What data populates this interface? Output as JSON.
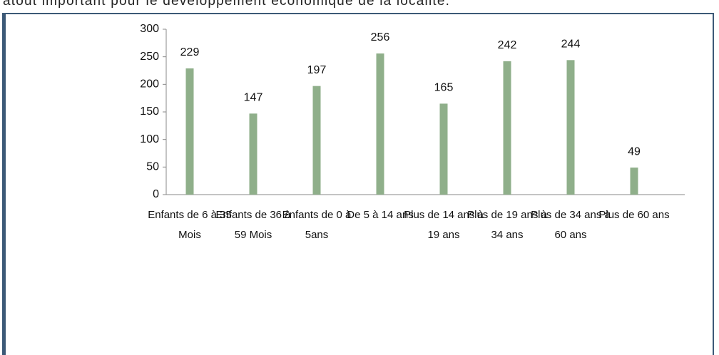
{
  "text_above": "atout important pour le développement économique de la localité.",
  "chart_data": {
    "type": "bar",
    "categories": [
      "Enfants de 6 à 35 Mois",
      "Enfants de 36 à 59 Mois",
      "Enfants de 0 à 5ans",
      "De 5 à 14 ans",
      "Plus de 14 ans à 19 ans",
      "Plus de 19 ans à 34 ans",
      "Plus de 34 ans à 60 ans",
      "Plus de 60 ans"
    ],
    "values": [
      229,
      147,
      197,
      256,
      165,
      242,
      244,
      49
    ],
    "color": "#8faf8a",
    "ylim": [
      0,
      300
    ],
    "yticks": [
      0,
      50,
      100,
      150,
      200,
      250,
      300
    ],
    "grid": false,
    "data_labels": true
  }
}
